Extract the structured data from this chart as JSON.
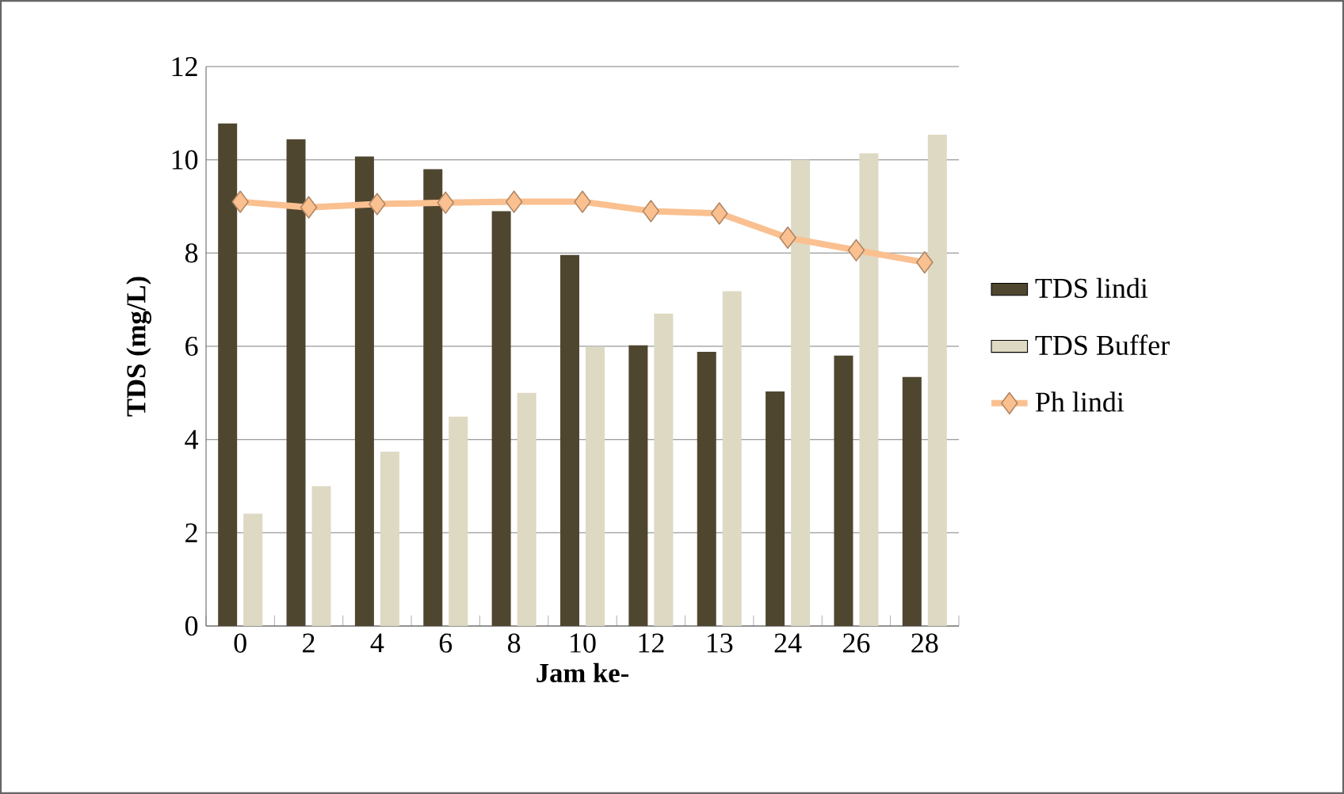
{
  "chart_data": {
    "type": "bar",
    "xlabel": "Jam ke-",
    "ylabel": "TDS (mg/L)",
    "categories": [
      "0",
      "2",
      "4",
      "6",
      "8",
      "10",
      "12",
      "13",
      "24",
      "26",
      "28"
    ],
    "series": [
      {
        "name": "TDS lindi",
        "color": "#4f4630",
        "values": [
          10.78,
          10.44,
          10.07,
          9.8,
          8.9,
          7.96,
          6.02,
          5.88,
          5.03,
          5.8,
          5.34
        ]
      },
      {
        "name": "TDS Buffer",
        "color": "#ddd9c3",
        "values": [
          2.41,
          3.0,
          3.74,
          4.49,
          5.0,
          5.99,
          6.7,
          7.18,
          10.0,
          10.14,
          10.54
        ]
      },
      {
        "name": "Ph lindi",
        "type": "line",
        "color": "#fac090",
        "marker": "diamond",
        "values": [
          9.1,
          8.98,
          9.05,
          9.08,
          9.1,
          9.1,
          8.9,
          8.85,
          8.33,
          8.06,
          7.8
        ]
      }
    ],
    "ylim": [
      0,
      12
    ],
    "yticks": [
      0,
      2,
      4,
      6,
      8,
      10,
      12
    ],
    "grid": "y",
    "legend": "right"
  }
}
